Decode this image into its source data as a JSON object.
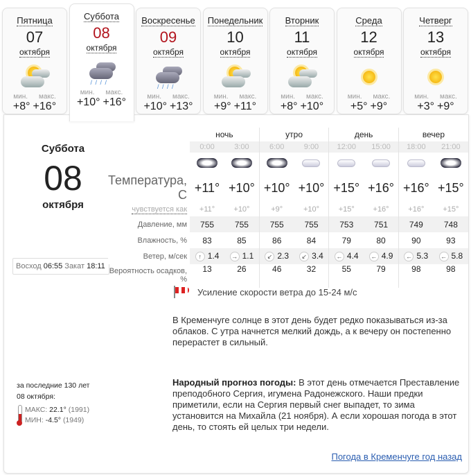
{
  "tabs": [
    {
      "day": "Пятница",
      "date": "07",
      "month": "октября",
      "min_label": "мин.",
      "max_label": "макс.",
      "min": "+8°",
      "max": "+16°",
      "icon": "partly-cloudy-icon",
      "weekend": false
    },
    {
      "day": "Суббота",
      "date": "08",
      "month": "октября",
      "min_label": "мин.",
      "max_label": "макс.",
      "min": "+10°",
      "max": "+16°",
      "icon": "rain-icon",
      "weekend": true,
      "active": true
    },
    {
      "day": "Воскресенье",
      "date": "09",
      "month": "октября",
      "min_label": "мин.",
      "max_label": "макс.",
      "min": "+10°",
      "max": "+13°",
      "icon": "rain-icon",
      "weekend": true
    },
    {
      "day": "Понедельник",
      "date": "10",
      "month": "октября",
      "min_label": "мин.",
      "max_label": "макс.",
      "min": "+9°",
      "max": "+11°",
      "icon": "partly-cloudy-icon",
      "weekend": false
    },
    {
      "day": "Вторник",
      "date": "11",
      "month": "октября",
      "min_label": "мин.",
      "max_label": "макс.",
      "min": "+8°",
      "max": "+10°",
      "icon": "partly-cloudy-icon",
      "weekend": false
    },
    {
      "day": "Среда",
      "date": "12",
      "month": "октября",
      "min_label": "мин.",
      "max_label": "макс.",
      "min": "+5°",
      "max": "+9°",
      "icon": "sun-icon",
      "weekend": false
    },
    {
      "day": "Четверг",
      "date": "13",
      "month": "октября",
      "min_label": "мин.",
      "max_label": "макс.",
      "min": "+3°",
      "max": "+9°",
      "icon": "sun-icon",
      "weekend": false
    }
  ],
  "selected": {
    "day": "Суббота",
    "date": "08",
    "month": "октября"
  },
  "sun": {
    "rise_label": "Восход",
    "rise": "06:55",
    "set_label": "Закат",
    "set": "18:11"
  },
  "table": {
    "periods": [
      "ночь",
      "утро",
      "день",
      "вечер"
    ],
    "times": [
      "0:00",
      "3:00",
      "6:00",
      "9:00",
      "12:00",
      "15:00",
      "18:00",
      "21:00"
    ],
    "icons": [
      "overcast-icon",
      "overcast-icon",
      "overcast-light-rain-icon",
      "cloudy-icon",
      "cloudy-light-rain-icon",
      "cloudy-rain-icon",
      "cloudy-rain-icon",
      "overcast-rain-icon"
    ],
    "labels": {
      "temp": "Температура, С",
      "feel": "чувствуется как",
      "pressure": "Давление, мм",
      "humidity": "Влажность, %",
      "wind": "Ветер, м/сек",
      "precip": "Вероятность осадков, %"
    },
    "temp": [
      "+11°",
      "+10°",
      "+10°",
      "+10°",
      "+15°",
      "+16°",
      "+16°",
      "+15°"
    ],
    "feel": [
      "+11°",
      "+10°",
      "+9°",
      "+10°",
      "+15°",
      "+16°",
      "+16°",
      "+15°"
    ],
    "pressure": [
      "755",
      "755",
      "755",
      "755",
      "753",
      "751",
      "749",
      "748"
    ],
    "humidity": [
      "83",
      "85",
      "86",
      "84",
      "79",
      "80",
      "90",
      "93"
    ],
    "wind_dir": [
      "↑",
      "→",
      "↙",
      "↙",
      "←",
      "←",
      "←",
      "←"
    ],
    "wind": [
      "1.4",
      "1.1",
      "2.3",
      "3.4",
      "4.4",
      "4.9",
      "5.3",
      "5.8"
    ],
    "precip": [
      "13",
      "26",
      "46",
      "32",
      "55",
      "79",
      "98",
      "98"
    ]
  },
  "warning": "Усиление скорости ветра до 15-24 м/с",
  "description": "В Кременчуге солнце в этот день будет редко показываться из-за облаков. С утра начнется мелкий дождь, а к вечеру он постепенно перерастет в сильный.",
  "folk": {
    "title": "Народный прогноз погоды:",
    "text": " В этот день отмечается Преставление преподобного Сергия, игумена Радонежского. Наши предки приметили, если на Сергия первый снег выпадет, то зима установится на Михайла (21 ноября). А если хорошая погода в этот день, то стоять ей целых три недели."
  },
  "history": {
    "line1": "за последние 130 лет",
    "line2": "08 октября:",
    "max_label": "МАКС:",
    "max": "22.1°",
    "max_year": "(1991)",
    "min_label": "МИН:",
    "min": "-4.5°",
    "min_year": "(1949)"
  },
  "link": "Погода в Кременчуге год назад",
  "colors": {
    "weekend": "#b2141d",
    "link": "#2a5db0"
  }
}
